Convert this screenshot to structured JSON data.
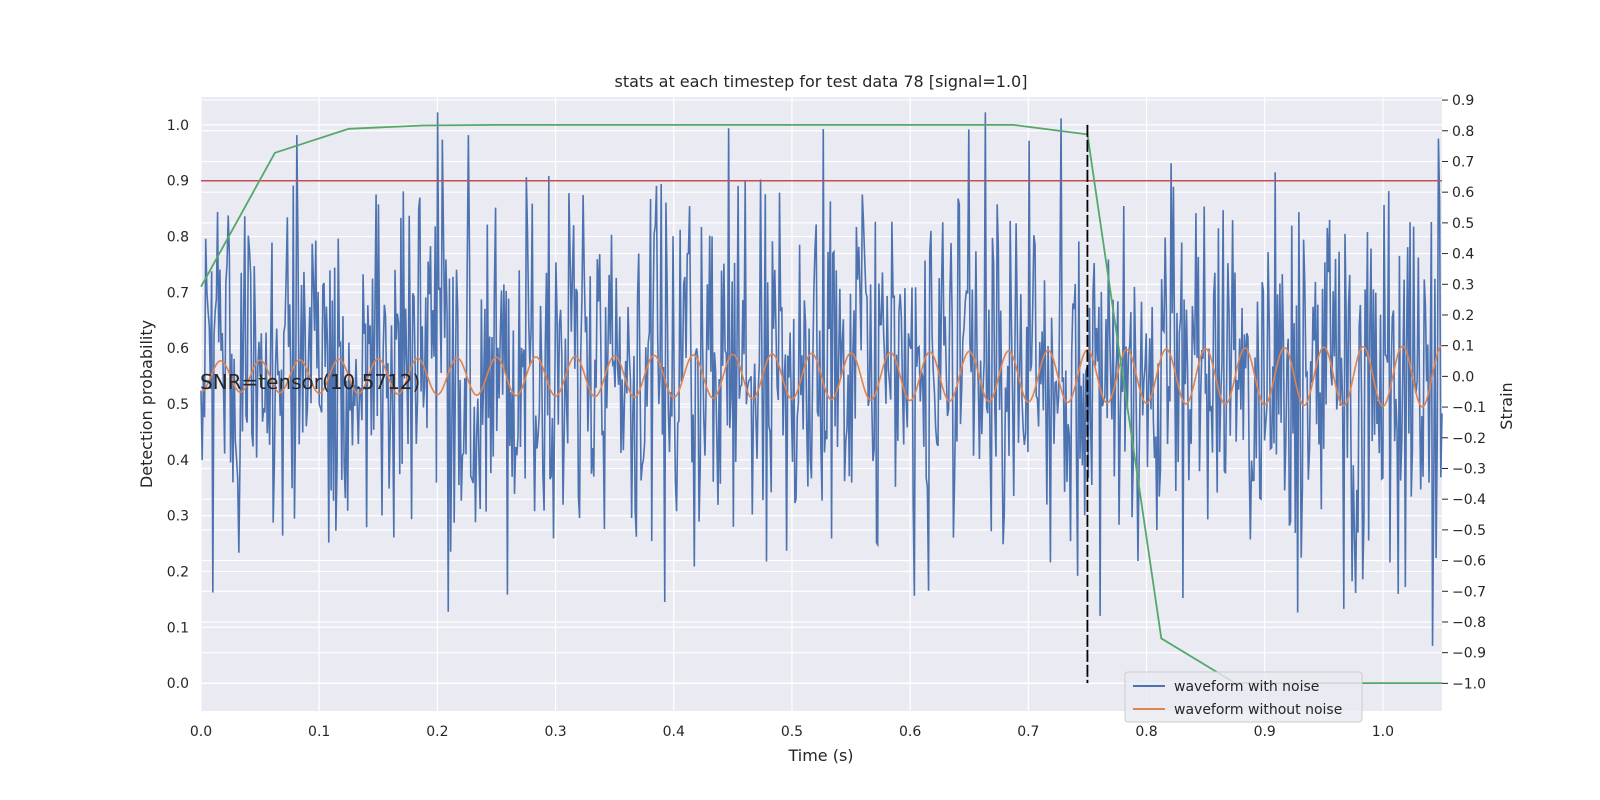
{
  "chart_data": {
    "type": "line",
    "title": "stats at each timestep for test data 78 [signal=1.0]",
    "xlabel": "Time (s)",
    "ylabel_left": "Detection probability",
    "ylabel_right": "Strain",
    "xlim": [
      0.0,
      1.05
    ],
    "ylim_left": [
      -0.05,
      1.05
    ],
    "ylim_right": [
      -1.09,
      0.91
    ],
    "x_ticks": [
      0.0,
      0.1,
      0.2,
      0.3,
      0.4,
      0.5,
      0.6,
      0.7,
      0.8,
      0.9,
      1.0
    ],
    "x_tick_labels": [
      "0.0",
      "0.1",
      "0.2",
      "0.3",
      "0.4",
      "0.5",
      "0.6",
      "0.7",
      "0.8",
      "0.9",
      "1.0"
    ],
    "y_left_ticks": [
      0.0,
      0.1,
      0.2,
      0.3,
      0.4,
      0.5,
      0.6,
      0.7,
      0.8,
      0.9,
      1.0
    ],
    "y_left_tick_labels": [
      "0.0",
      "0.1",
      "0.2",
      "0.3",
      "0.4",
      "0.5",
      "0.6",
      "0.7",
      "0.8",
      "0.9",
      "1.0"
    ],
    "y_right_ticks": [
      0.9,
      0.8,
      0.7,
      0.6,
      0.5,
      0.4,
      0.3,
      0.2,
      0.1,
      0.0,
      -0.1,
      -0.2,
      -0.3,
      -0.4,
      -0.5,
      -0.6,
      -0.7,
      -0.8,
      -0.9,
      -1.0
    ],
    "y_right_tick_labels": [
      "0.9",
      "0.8",
      "0.7",
      "0.6",
      "0.5",
      "0.4",
      "0.3",
      "0.2",
      "0.1",
      "0.0",
      "−0.1",
      "−0.2",
      "−0.3",
      "−0.4",
      "−0.5",
      "−0.6",
      "−0.7",
      "−0.8",
      "−0.9",
      "−1.0"
    ],
    "grid": true,
    "background_color": "#eaeaf2",
    "detection_probability": {
      "axis": "left",
      "color": "#55a868",
      "x": [
        0.0,
        0.0625,
        0.125,
        0.1875,
        0.25,
        0.3125,
        0.375,
        0.4375,
        0.5,
        0.5625,
        0.625,
        0.6875,
        0.75,
        0.8125,
        0.875,
        0.9375,
        1.0,
        1.05
      ],
      "y": [
        0.71,
        0.95,
        0.993,
        0.999,
        1.0,
        1.0,
        1.0,
        1.0,
        1.0,
        1.0,
        1.0,
        1.0,
        0.983,
        0.08,
        0.0,
        0.0,
        0.0,
        0.0
      ]
    },
    "threshold_line": {
      "axis": "left",
      "y": 0.9,
      "color": "#c44e52"
    },
    "event_marker": {
      "x": 0.75,
      "y_range": [
        0.0,
        1.0
      ],
      "color": "#000000",
      "style": "dashed"
    },
    "noisy_waveform": {
      "name": "waveform with noise",
      "axis": "right",
      "color": "#4c72b0",
      "description_of_pattern": "dense noise around 0.0 strain spanning roughly -1.0 to 0.86",
      "n_points": 1050,
      "amplitude_std": 0.3,
      "seed": 78
    },
    "clean_waveform": {
      "name": "waveform without noise",
      "axis": "right",
      "color": "#dd8452",
      "frequency_hz": 30,
      "amplitude_start": 0.05,
      "amplitude_end": 0.1
    },
    "legend": {
      "position": "lower-right",
      "entries": [
        {
          "label": "waveform with noise",
          "color": "#4c72b0"
        },
        {
          "label": "waveform without noise",
          "color": "#dd8452"
        }
      ]
    },
    "annotation": {
      "text": "SNR=tensor(10.5712)"
    }
  }
}
